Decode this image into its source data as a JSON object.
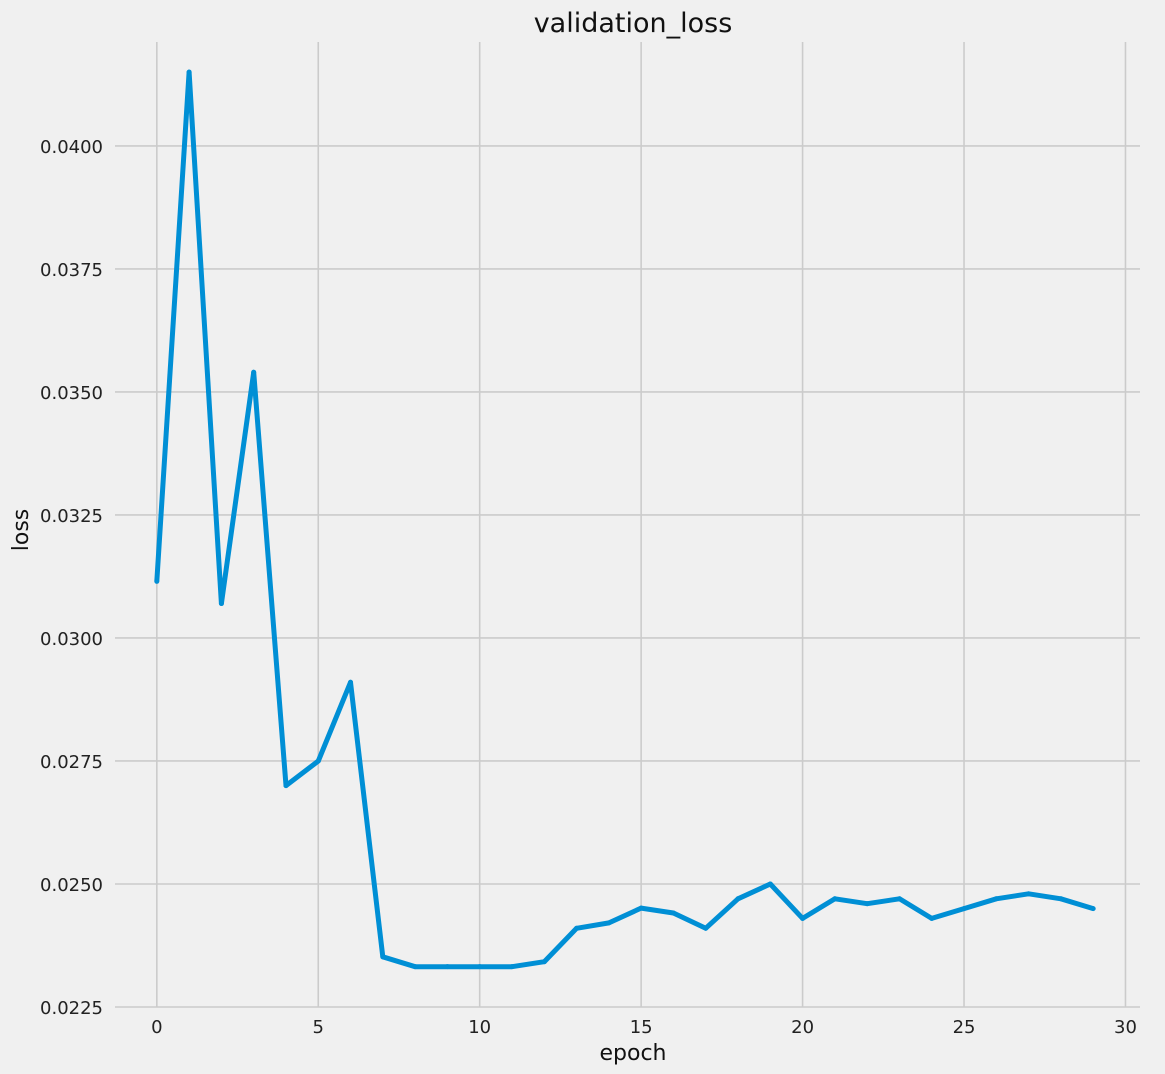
{
  "chart_data": {
    "type": "line",
    "title": "validation_loss",
    "xlabel": "epoch",
    "ylabel": "loss",
    "xlim": [
      -1.45,
      30.45
    ],
    "ylim": [
      0.0225,
      0.04195
    ],
    "grid": true,
    "x_ticks": [
      0,
      5,
      10,
      15,
      20,
      25,
      30
    ],
    "x_tick_labels": [
      "0",
      "5",
      "10",
      "15",
      "20",
      "25",
      "30"
    ],
    "y_ticks": [
      0.0225,
      0.025,
      0.0275,
      0.03,
      0.0325,
      0.035,
      0.0375,
      0.04
    ],
    "y_tick_labels": [
      "0.0225",
      "0.0250",
      "0.0275",
      "0.0300",
      "0.0325",
      "0.0350",
      "0.0375",
      "0.0400"
    ],
    "series": [
      {
        "color": "#008fd5",
        "x": [
          0,
          1,
          2,
          3,
          4,
          5,
          6,
          7,
          8,
          9,
          10,
          11,
          12,
          13,
          14,
          15,
          16,
          17,
          18,
          19,
          20,
          21,
          22,
          23,
          24,
          25,
          26,
          27,
          28,
          29
        ],
        "values": [
          0.03115,
          0.0415,
          0.0307,
          0.0354,
          0.027,
          0.0275,
          0.0291,
          0.02352,
          0.02332,
          0.02332,
          0.02332,
          0.02332,
          0.02342,
          0.0241,
          0.02421,
          0.02451,
          0.02441,
          0.0241,
          0.0247,
          0.025,
          0.0243,
          0.0247,
          0.0246,
          0.0247,
          0.0243,
          0.0245,
          0.0247,
          0.0248,
          0.0247,
          0.0245
        ]
      }
    ]
  }
}
